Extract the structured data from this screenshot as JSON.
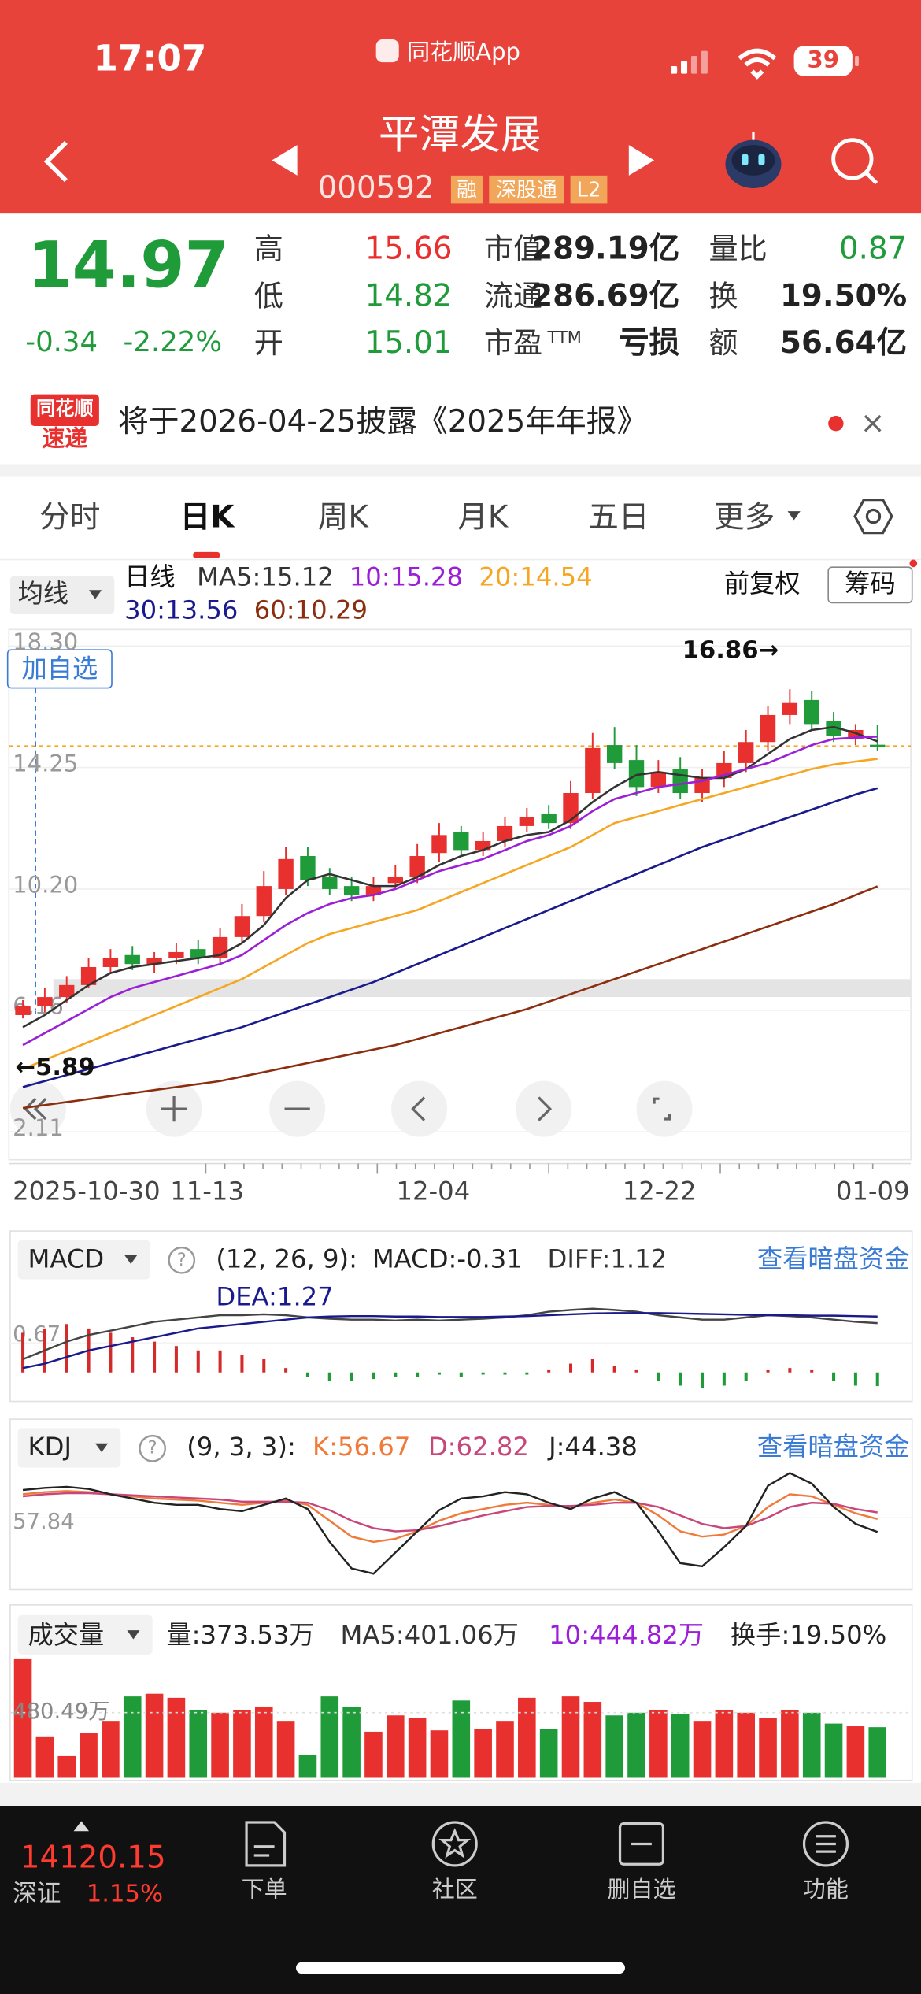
{
  "status_bar": {
    "time": "17:07",
    "app": "同花顺App",
    "battery": 39
  },
  "header": {
    "title": "平潭发展",
    "code": "000592",
    "tags": [
      "融",
      "深股通",
      "L2"
    ]
  },
  "quote": {
    "price": "14.97",
    "change": "-0.34",
    "change_pct": "-2.22%",
    "color": "#1f9b3a",
    "stats": [
      {
        "label": "高",
        "value": "15.66",
        "color": "#e8312f"
      },
      {
        "label": "低",
        "value": "14.82",
        "color": "#1f9b3a"
      },
      {
        "label": "开",
        "value": "15.01",
        "color": "#1f9b3a"
      },
      {
        "label": "市值",
        "value": "289.19亿"
      },
      {
        "label": "流通",
        "value": "286.69亿"
      },
      {
        "label": "市盈",
        "sup": "TTM",
        "value": "亏损"
      },
      {
        "label": "量比",
        "value": "0.87",
        "color": "#1f9b3a"
      },
      {
        "label": "换",
        "value": "19.50%"
      },
      {
        "label": "额",
        "value": "56.64亿"
      }
    ]
  },
  "notice": {
    "logo": [
      "同花顺",
      "速递"
    ],
    "text": "将于2026-04-25披露《2025年年报》"
  },
  "tabs": [
    "分时",
    "日K",
    "周K",
    "月K",
    "五日",
    "更多"
  ],
  "ma_legend": {
    "menu": "均线",
    "period": "日线",
    "adjust": "前复权",
    "chips": "筹码"
  },
  "controls": {
    "add_watch": "加自选"
  },
  "chart_data": {
    "type": "candlestick",
    "up_color": "#e8312f",
    "down_color": "#1f9b3a",
    "open": [
      6.0,
      6.3,
      6.6,
      7.0,
      7.6,
      8.0,
      7.7,
      7.9,
      8.2,
      7.9,
      8.6,
      9.3,
      10.2,
      11.3,
      10.6,
      10.3,
      10.0,
      10.4,
      10.6,
      11.4,
      12.1,
      11.5,
      11.8,
      12.3,
      12.7,
      12.4,
      13.4,
      15.0,
      14.5,
      13.6,
      14.2,
      13.4,
      13.9,
      14.4,
      15.1,
      16.0,
      16.5,
      15.8,
      15.2,
      15.01
    ],
    "high": [
      6.5,
      6.9,
      7.3,
      7.9,
      8.2,
      8.3,
      8.1,
      8.4,
      8.5,
      8.9,
      9.7,
      10.8,
      11.6,
      11.6,
      10.9,
      10.6,
      10.6,
      11.0,
      11.7,
      12.4,
      12.3,
      12.1,
      12.6,
      12.9,
      13.0,
      13.8,
      15.4,
      15.6,
      15.0,
      14.5,
      14.6,
      14.2,
      14.8,
      15.5,
      16.3,
      16.86,
      16.8,
      16.1,
      15.7,
      15.66
    ],
    "low": [
      5.89,
      6.1,
      6.4,
      6.9,
      7.4,
      7.5,
      7.4,
      7.7,
      7.7,
      7.7,
      8.4,
      9.1,
      10.0,
      10.3,
      10.0,
      9.8,
      9.8,
      10.2,
      10.4,
      11.1,
      11.3,
      11.3,
      11.6,
      12.1,
      12.2,
      12.2,
      13.2,
      14.2,
      13.3,
      13.4,
      13.2,
      13.1,
      13.6,
      14.1,
      14.8,
      15.7,
      15.5,
      15.1,
      15.0,
      14.82
    ],
    "close": [
      6.3,
      6.6,
      7.0,
      7.6,
      7.9,
      7.7,
      7.9,
      8.1,
      7.9,
      8.6,
      9.3,
      10.3,
      11.2,
      10.5,
      10.2,
      10.0,
      10.3,
      10.6,
      11.3,
      12.0,
      11.5,
      11.8,
      12.3,
      12.6,
      12.4,
      13.4,
      14.9,
      14.4,
      13.6,
      14.1,
      13.4,
      13.9,
      14.4,
      15.1,
      16.0,
      16.4,
      15.7,
      15.3,
      15.5,
      14.97
    ],
    "series": [
      {
        "name": "MA5:15.12",
        "color": "#333333",
        "values": [
          5.6,
          6.0,
          6.5,
          7.0,
          7.4,
          7.6,
          7.7,
          7.8,
          7.9,
          8.0,
          8.4,
          9.0,
          9.9,
          10.5,
          10.7,
          10.5,
          10.3,
          10.3,
          10.6,
          11.0,
          11.3,
          11.5,
          11.8,
          12.0,
          12.1,
          12.5,
          13.1,
          13.6,
          14.0,
          14.1,
          14.0,
          13.9,
          13.9,
          14.2,
          14.7,
          15.2,
          15.5,
          15.6,
          15.4,
          15.12
        ]
      },
      {
        "name": "10:15.28",
        "color": "#9b1fd6",
        "values": [
          5.0,
          5.4,
          5.8,
          6.2,
          6.6,
          6.9,
          7.1,
          7.3,
          7.5,
          7.7,
          8.0,
          8.5,
          9.0,
          9.4,
          9.7,
          9.9,
          10.0,
          10.2,
          10.5,
          10.8,
          11.0,
          11.2,
          11.5,
          11.8,
          12.0,
          12.3,
          12.8,
          13.2,
          13.4,
          13.6,
          13.7,
          13.8,
          14.0,
          14.2,
          14.4,
          14.7,
          15.0,
          15.2,
          15.25,
          15.28
        ]
      },
      {
        "name": "20:14.54",
        "color": "#f5a623",
        "values": [
          4.2,
          4.5,
          4.8,
          5.1,
          5.4,
          5.7,
          6.0,
          6.3,
          6.6,
          6.9,
          7.2,
          7.6,
          8.0,
          8.4,
          8.7,
          8.9,
          9.1,
          9.3,
          9.5,
          9.8,
          10.1,
          10.4,
          10.7,
          11.0,
          11.3,
          11.6,
          12.0,
          12.4,
          12.6,
          12.8,
          13.0,
          13.2,
          13.4,
          13.6,
          13.8,
          14.0,
          14.2,
          14.35,
          14.45,
          14.54
        ]
      },
      {
        "name": "30:13.56",
        "color": "#1a1a8c",
        "values": [
          3.6,
          3.8,
          4.0,
          4.2,
          4.4,
          4.6,
          4.8,
          5.0,
          5.2,
          5.4,
          5.6,
          5.85,
          6.1,
          6.35,
          6.6,
          6.85,
          7.1,
          7.4,
          7.7,
          8.0,
          8.3,
          8.6,
          8.9,
          9.2,
          9.5,
          9.8,
          10.1,
          10.4,
          10.7,
          11.0,
          11.3,
          11.6,
          11.85,
          12.1,
          12.35,
          12.6,
          12.85,
          13.1,
          13.35,
          13.56
        ]
      },
      {
        "name": "60:10.29",
        "color": "#8b2e10",
        "values": [
          2.9,
          3.0,
          3.1,
          3.2,
          3.3,
          3.4,
          3.5,
          3.6,
          3.7,
          3.8,
          3.95,
          4.1,
          4.25,
          4.4,
          4.55,
          4.7,
          4.85,
          5.0,
          5.2,
          5.4,
          5.6,
          5.8,
          6.0,
          6.2,
          6.45,
          6.7,
          6.95,
          7.2,
          7.45,
          7.7,
          7.95,
          8.2,
          8.45,
          8.7,
          8.95,
          9.2,
          9.45,
          9.7,
          10.0,
          10.29
        ]
      }
    ],
    "ylim": [
      2.11,
      18.3
    ],
    "yticks": [
      {
        "value": 18.3,
        "label": "18.30"
      },
      14.25,
      {
        "value": 10.2,
        "label": "10.20"
      },
      6.16,
      2.11
    ],
    "last_price": 14.97,
    "annotations": [
      "16.86→",
      "←5.89"
    ],
    "x_labels": [
      "2025-10-30",
      "11-13",
      "12-04",
      "12-22",
      "01-09"
    ]
  },
  "macd": {
    "menu": "MACD",
    "params": "(12, 26, 9):",
    "macd_label": "MACD:-0.31",
    "diff_label": "DIFF:1.12",
    "dea_label": "DEA:1.27",
    "link": "查看暗盘资金",
    "ylim": [
      -0.6,
      2.0
    ],
    "yticks": [
      0.67
    ],
    "macd": [
      0.9,
      1.0,
      1.1,
      1.0,
      0.9,
      0.8,
      0.7,
      0.6,
      0.5,
      0.5,
      0.4,
      0.3,
      0.1,
      -0.1,
      -0.2,
      -0.2,
      -0.15,
      -0.1,
      -0.1,
      -0.05,
      -0.1,
      -0.05,
      -0.05,
      -0.05,
      0.05,
      0.2,
      0.3,
      0.15,
      0.05,
      -0.2,
      -0.3,
      -0.35,
      -0.3,
      -0.2,
      0.05,
      0.1,
      0.05,
      -0.2,
      -0.3,
      -0.31
    ],
    "diff": [
      0.3,
      0.5,
      0.7,
      0.85,
      0.95,
      1.05,
      1.15,
      1.2,
      1.25,
      1.3,
      1.3,
      1.32,
      1.3,
      1.25,
      1.22,
      1.2,
      1.2,
      1.18,
      1.2,
      1.18,
      1.2,
      1.22,
      1.25,
      1.3,
      1.38,
      1.42,
      1.45,
      1.42,
      1.38,
      1.3,
      1.25,
      1.2,
      1.2,
      1.25,
      1.3,
      1.28,
      1.25,
      1.2,
      1.15,
      1.12
    ],
    "dea": [
      0.1,
      0.2,
      0.35,
      0.5,
      0.6,
      0.7,
      0.8,
      0.9,
      1.0,
      1.05,
      1.1,
      1.15,
      1.2,
      1.25,
      1.27,
      1.28,
      1.28,
      1.27,
      1.27,
      1.26,
      1.26,
      1.26,
      1.27,
      1.28,
      1.3,
      1.32,
      1.34,
      1.35,
      1.35,
      1.35,
      1.34,
      1.33,
      1.32,
      1.31,
      1.3,
      1.3,
      1.29,
      1.29,
      1.28,
      1.27
    ]
  },
  "kdj": {
    "menu": "KDJ",
    "params": "(9, 3, 3):",
    "k_label": "K:56.67",
    "d_label": "D:62.82",
    "j_label": "J:44.38",
    "link": "查看暗盘资金",
    "ylim": [
      -10,
      110
    ],
    "yticks": [
      57.84
    ],
    "k": [
      80,
      82,
      83,
      82,
      80,
      78,
      76,
      75,
      74,
      72,
      70,
      72,
      74,
      70,
      55,
      40,
      35,
      38,
      45,
      55,
      62,
      66,
      70,
      72,
      70,
      68,
      72,
      75,
      72,
      60,
      45,
      40,
      42,
      50,
      68,
      80,
      78,
      70,
      62,
      56.67
    ],
    "d": [
      78,
      80,
      81,
      81,
      80,
      79,
      78,
      77,
      76,
      75,
      73,
      73,
      73,
      72,
      65,
      55,
      48,
      45,
      46,
      50,
      55,
      60,
      64,
      68,
      69,
      69,
      70,
      72,
      72,
      68,
      60,
      52,
      48,
      50,
      58,
      68,
      72,
      71,
      66,
      62.82
    ],
    "j": [
      84,
      86,
      87,
      85,
      80,
      76,
      72,
      70,
      70,
      66,
      64,
      70,
      76,
      66,
      35,
      10,
      5,
      25,
      45,
      65,
      76,
      78,
      82,
      80,
      72,
      66,
      76,
      82,
      72,
      45,
      15,
      12,
      30,
      50,
      88,
      100,
      90,
      68,
      52,
      44.38
    ]
  },
  "volume": {
    "menu": "成交量",
    "vol_label": "量:373.53万",
    "ma5_label": "MA5:401.06万",
    "ma10_label": "10:444.82万",
    "turnover_label": "换手:19.50%",
    "ylim": [
      0,
      900
    ],
    "yticks": [
      {
        "value": 480.49,
        "label": "480.49万"
      }
    ],
    "values": [
      880,
      300,
      160,
      330,
      420,
      600,
      620,
      590,
      500,
      480,
      500,
      520,
      420,
      170,
      600,
      520,
      340,
      460,
      440,
      350,
      570,
      360,
      420,
      590,
      360,
      600,
      560,
      460,
      480,
      500,
      470,
      420,
      500,
      480,
      440,
      500,
      480,
      400,
      380,
      373.53
    ]
  },
  "bottom_bar": {
    "index": "14120.15",
    "market": "深证",
    "pct": "1.15%",
    "items": [
      "下单",
      "社区",
      "删自选",
      "功能"
    ]
  }
}
